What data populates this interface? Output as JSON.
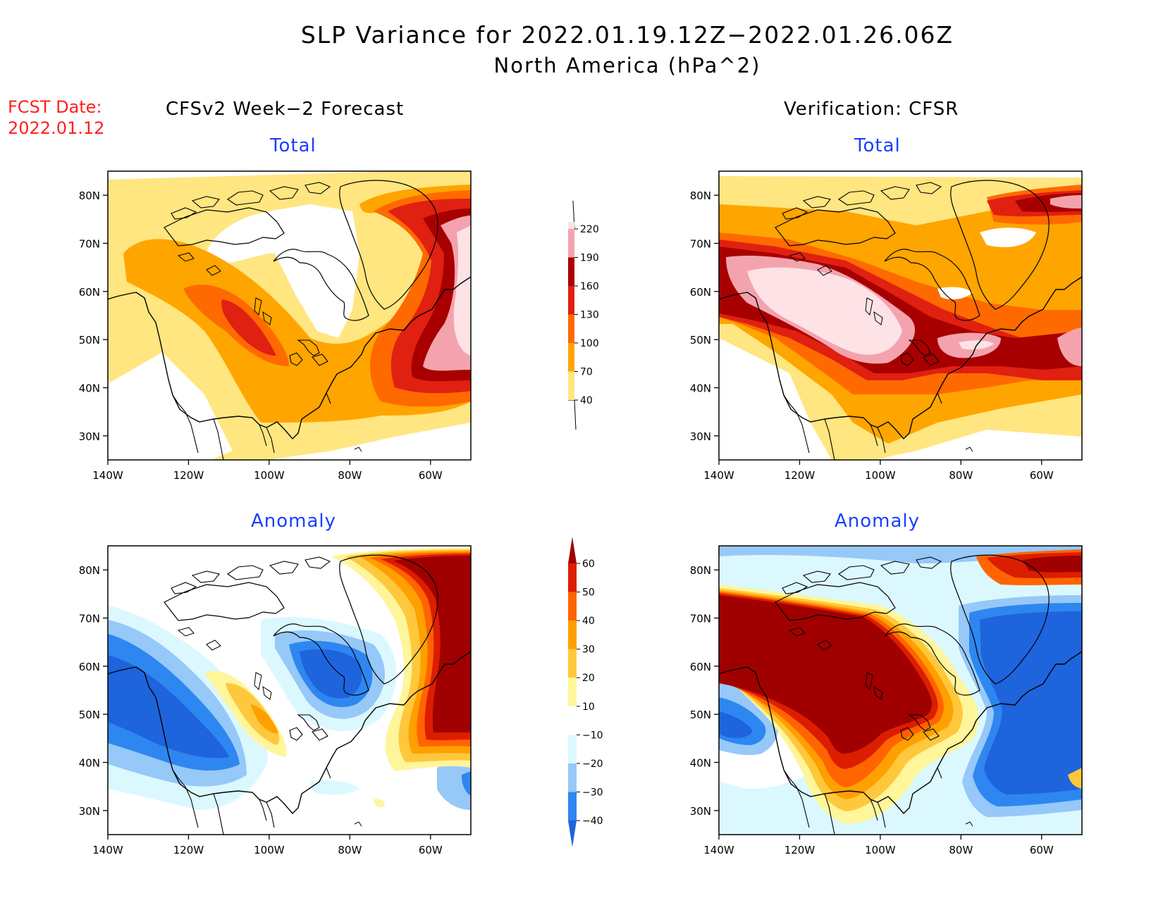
{
  "title": {
    "line1": "SLP Variance for 2022.01.19.12Z−2022.01.26.06Z",
    "line2": "North America (hPa^2)"
  },
  "fcst_date": {
    "label": "FCST Date:",
    "value": "2022.01.12"
  },
  "columns": {
    "left": "CFSv2 Week−2 Forecast",
    "right": "Verification: CFSR"
  },
  "panels": {
    "fcst_total": "Total",
    "verif_total": "Total",
    "fcst_anomaly": "Anomaly",
    "verif_anomaly": "Anomaly"
  },
  "axes": {
    "lat_labels": [
      "80N",
      "70N",
      "60N",
      "50N",
      "40N",
      "30N"
    ],
    "lon_labels": [
      "140W",
      "120W",
      "100W",
      "80W",
      "60W"
    ]
  },
  "colorbars": {
    "total": {
      "levels": [
        "40",
        "70",
        "100",
        "130",
        "160",
        "190",
        "220"
      ],
      "colors": [
        "#ffe680",
        "#ffa500",
        "#ff6a00",
        "#e02010",
        "#a80000",
        "#f4a3ae",
        "#fde2e6"
      ]
    },
    "anomaly": {
      "levels": [
        "-40",
        "-30",
        "-20",
        "-10",
        "10",
        "20",
        "30",
        "40",
        "50",
        "60"
      ],
      "colors": [
        "#1e64dc",
        "#2e86f0",
        "#96c8f8",
        "#dcf8ff",
        "#ffffff",
        "#fff59a",
        "#ffc83c",
        "#ffa000",
        "#ff6400",
        "#dc1e00",
        "#a00000"
      ]
    }
  },
  "colors": {
    "title_text": "#000000",
    "fcst_date_text": "#ff2020",
    "panel_subtitle_text": "#1a3fff"
  }
}
